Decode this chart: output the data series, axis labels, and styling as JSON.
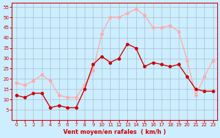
{
  "hours": [
    0,
    1,
    2,
    3,
    4,
    5,
    6,
    7,
    8,
    9,
    10,
    11,
    12,
    13,
    14,
    15,
    16,
    17,
    18,
    19,
    20,
    21,
    22,
    23
  ],
  "wind_avg": [
    12,
    11,
    13,
    13,
    6,
    7,
    6,
    6,
    15,
    27,
    31,
    28,
    30,
    37,
    35,
    26,
    28,
    27,
    26,
    27,
    21,
    15,
    14,
    14
  ],
  "wind_gust": [
    18,
    17,
    19,
    22,
    19,
    12,
    11,
    11,
    17,
    24,
    42,
    50,
    50,
    52,
    54,
    51,
    45,
    45,
    46,
    43,
    29,
    12,
    21,
    29
  ],
  "bg_color": "#cceeff",
  "grid_color": "#aabbcc",
  "avg_color": "#cc0000",
  "gust_color": "#ffaaaa",
  "xlabel": "Vent moyen/en rafales  ( km/h )",
  "xlabel_color": "#cc0000",
  "ylabel_color": "#cc0000",
  "ylim": [
    0,
    57
  ],
  "yticks": [
    5,
    10,
    15,
    20,
    25,
    30,
    35,
    40,
    45,
    50,
    55
  ],
  "xticks": [
    0,
    1,
    2,
    3,
    4,
    5,
    6,
    7,
    8,
    9,
    10,
    11,
    12,
    13,
    14,
    15,
    16,
    17,
    18,
    19,
    20,
    21,
    22,
    23
  ]
}
